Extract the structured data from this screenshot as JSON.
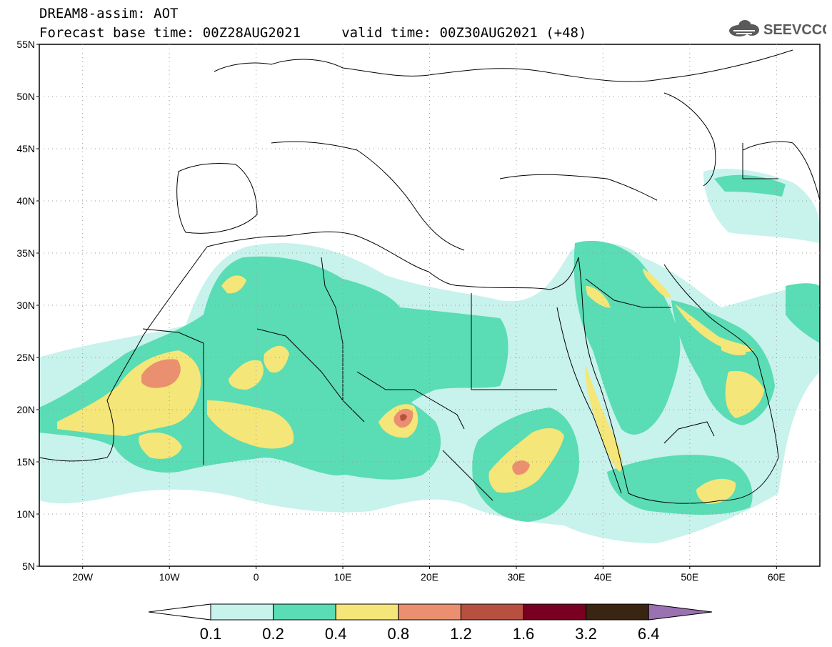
{
  "header": {
    "line1": "DREAM8-assim: AOT",
    "line2": "Forecast base time: 00Z28AUG2021     valid time: 00Z30AUG2021 (+48)",
    "logo_text": "SEEVCCC"
  },
  "map": {
    "lat_labels": [
      "55N",
      "50N",
      "45N",
      "40N",
      "35N",
      "30N",
      "25N",
      "20N",
      "15N",
      "10N",
      "5N"
    ],
    "lon_labels": [
      "20W",
      "10W",
      "0",
      "10E",
      "20E",
      "30E",
      "40E",
      "50E",
      "60E"
    ],
    "colors": {
      "c1": "#c8f2ec",
      "c2": "#5adcb4",
      "c3": "#f4e678",
      "c4": "#ea9070",
      "c5": "#b85040",
      "c6": "#7a0022",
      "c7": "#3a2412",
      "c8": "#9a72b2",
      "border": "#000000"
    }
  },
  "colorbar": {
    "labels": [
      "0.1",
      "0.2",
      "0.4",
      "0.8",
      "1.2",
      "1.6",
      "3.2",
      "6.4"
    ],
    "colors": [
      "#c8f2ec",
      "#5adcb4",
      "#f4e678",
      "#ea9070",
      "#b85040",
      "#7a0022",
      "#3a2412"
    ],
    "under_color": "#ffffff",
    "over_color": "#9a72b2"
  }
}
